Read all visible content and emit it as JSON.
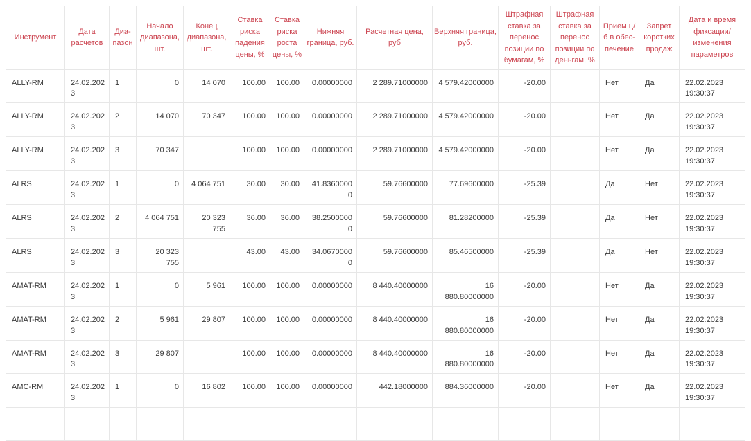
{
  "theme": {
    "header_text_color": "#cc4450",
    "cell_text_color": "#3a3a3a",
    "border_color": "#e7e7e7",
    "background_color": "#ffffff"
  },
  "table": {
    "columns": [
      "Инструмент",
      "Дата расчетов",
      "Диа-пазон",
      "Начало диапазона, шт.",
      "Конец диапазона, шт.",
      "Ставка риска падения цены, %",
      "Ставка риска роста цены, %",
      "Нижняя граница, руб.",
      "Расчетная цена, руб",
      "Верхняя граница, руб.",
      "Штрафная ставка за перенос позиции по бумагам, %",
      "Штрафная ставка за перенос позиции по деньгам, %",
      "Прием ц/б в обес-печение",
      "Запрет коротких продаж",
      "Дата и время фиксации/ изменения параметров"
    ],
    "rows": [
      [
        "ALLY-RM",
        "24.02.2023",
        "1",
        "0",
        "14 070",
        "100.00",
        "100.00",
        "0.00000000",
        "2 289.71000000",
        "4 579.42000000",
        "-20.00",
        "",
        "Нет",
        "Да",
        "22.02.2023 19:30:37"
      ],
      [
        "ALLY-RM",
        "24.02.2023",
        "2",
        "14 070",
        "70 347",
        "100.00",
        "100.00",
        "0.00000000",
        "2 289.71000000",
        "4 579.42000000",
        "-20.00",
        "",
        "Нет",
        "Да",
        "22.02.2023 19:30:37"
      ],
      [
        "ALLY-RM",
        "24.02.2023",
        "3",
        "70 347",
        "",
        "100.00",
        "100.00",
        "0.00000000",
        "2 289.71000000",
        "4 579.42000000",
        "-20.00",
        "",
        "Нет",
        "Да",
        "22.02.2023 19:30:37"
      ],
      [
        "ALRS",
        "24.02.2023",
        "1",
        "0",
        "4 064 751",
        "30.00",
        "30.00",
        "41.83600000",
        "59.76600000",
        "77.69600000",
        "-25.39",
        "",
        "Да",
        "Нет",
        "22.02.2023 19:30:37"
      ],
      [
        "ALRS",
        "24.02.2023",
        "2",
        "4 064 751",
        "20 323 755",
        "36.00",
        "36.00",
        "38.25000000",
        "59.76600000",
        "81.28200000",
        "-25.39",
        "",
        "Да",
        "Нет",
        "22.02.2023 19:30:37"
      ],
      [
        "ALRS",
        "24.02.2023",
        "3",
        "20 323 755",
        "",
        "43.00",
        "43.00",
        "34.06700000",
        "59.76600000",
        "85.46500000",
        "-25.39",
        "",
        "Да",
        "Нет",
        "22.02.2023 19:30:37"
      ],
      [
        "AMAT-RM",
        "24.02.2023",
        "1",
        "0",
        "5 961",
        "100.00",
        "100.00",
        "0.00000000",
        "8 440.40000000",
        "16 880.80000000",
        "-20.00",
        "",
        "Нет",
        "Да",
        "22.02.2023 19:30:37"
      ],
      [
        "AMAT-RM",
        "24.02.2023",
        "2",
        "5 961",
        "29 807",
        "100.00",
        "100.00",
        "0.00000000",
        "8 440.40000000",
        "16 880.80000000",
        "-20.00",
        "",
        "Нет",
        "Да",
        "22.02.2023 19:30:37"
      ],
      [
        "AMAT-RM",
        "24.02.2023",
        "3",
        "29 807",
        "",
        "100.00",
        "100.00",
        "0.00000000",
        "8 440.40000000",
        "16 880.80000000",
        "-20.00",
        "",
        "Нет",
        "Да",
        "22.02.2023 19:30:37"
      ],
      [
        "AMC-RM",
        "24.02.2023",
        "1",
        "0",
        "16 802",
        "100.00",
        "100.00",
        "0.00000000",
        "442.18000000",
        "884.36000000",
        "-20.00",
        "",
        "Нет",
        "Да",
        "22.02.2023 19:30:37"
      ],
      [
        "",
        "",
        "",
        "",
        "",
        "",
        "",
        "",
        "",
        "",
        "",
        "",
        "",
        "",
        ""
      ]
    ]
  }
}
